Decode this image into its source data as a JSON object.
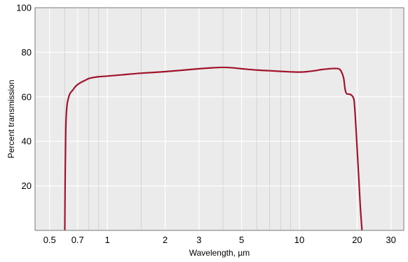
{
  "chart_data": {
    "type": "line",
    "title": "",
    "xlabel": "Wavelength, µm",
    "ylabel": "Percent transmission",
    "x_scale": "log",
    "xlim": [
      0.42,
      35
    ],
    "ylim": [
      0,
      100
    ],
    "x_ticks": [
      0.5,
      0.7,
      1,
      2,
      3,
      5,
      10,
      20,
      30
    ],
    "x_tick_labels": [
      "0.5",
      "0.7",
      "1",
      "2",
      "3",
      "5",
      "10",
      "20",
      "30"
    ],
    "x_minor_gridlines": [
      0.6,
      0.8,
      0.9,
      1.5,
      4,
      6,
      7,
      8,
      9
    ],
    "y_ticks": [
      20,
      40,
      60,
      80,
      100
    ],
    "y_tick_labels": [
      "20",
      "40",
      "60",
      "80",
      "100"
    ],
    "grid": true,
    "background_color": "#ebebeb",
    "grid_color": "#ffffff",
    "minor_grid_color": "#d2d2d2",
    "series": [
      {
        "color": "#a0142a",
        "x": [
          0.6,
          0.603,
          0.607,
          0.612,
          0.618,
          0.625,
          0.635,
          0.645,
          0.66,
          0.68,
          0.7,
          0.73,
          0.77,
          0.8,
          0.85,
          0.9,
          1.0,
          1.2,
          1.5,
          2.0,
          2.5,
          3.0,
          3.5,
          4.0,
          4.5,
          5.0,
          6.0,
          7.0,
          8.0,
          9.0,
          10.0,
          11.0,
          12.0,
          13.0,
          14.0,
          15.0,
          16.0,
          16.5,
          17.0,
          17.3,
          17.6,
          18.0,
          18.5,
          19.0,
          19.3,
          19.6,
          19.9,
          20.2,
          20.5,
          20.8,
          21.2
        ],
        "y": [
          0,
          25,
          45,
          53,
          57,
          59,
          61,
          62,
          63,
          64.5,
          65.5,
          66.5,
          67.5,
          68.2,
          68.7,
          69.0,
          69.3,
          69.9,
          70.6,
          71.3,
          72.0,
          72.6,
          73.0,
          73.2,
          73.0,
          72.6,
          72.0,
          71.7,
          71.4,
          71.2,
          71.1,
          71.3,
          71.7,
          72.2,
          72.5,
          72.7,
          72.6,
          71.5,
          68.5,
          63.5,
          61.5,
          61.2,
          61.0,
          60.0,
          58.0,
          50.0,
          40.0,
          30.0,
          20.0,
          10.0,
          0
        ]
      }
    ]
  }
}
